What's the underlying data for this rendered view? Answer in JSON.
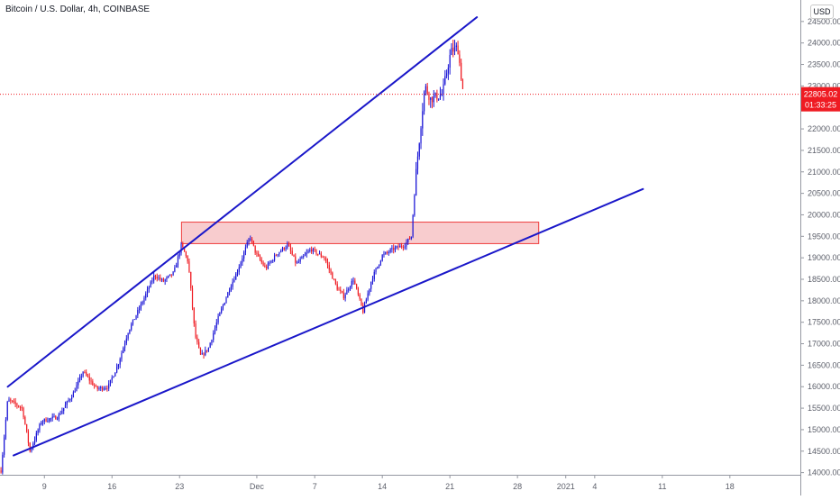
{
  "title": "Bitcoin / U.S. Dollar, 4h, COINBASE",
  "currency_label": "USD",
  "last_price_label": "22805.02",
  "countdown_label": "01:33:25",
  "colors": {
    "trendline": "#1a17c9",
    "up_candle": "#1b16d6",
    "down_candle": "#ef1b22",
    "zone_fill": "#f7c3c6",
    "zone_border": "#ee3b3b",
    "price_label_bg": "#ef1b22",
    "axis_text": "#5d606b",
    "axis_line": "#9598a1"
  },
  "chart_data": {
    "type": "candlestick",
    "title": "Bitcoin / U.S. Dollar, 4h, COINBASE",
    "ylim": [
      13950,
      25000
    ],
    "y_ticks": [
      14000,
      14500,
      15000,
      15500,
      16000,
      16500,
      17000,
      17500,
      18000,
      18500,
      19000,
      19500,
      20000,
      20500,
      21000,
      21500,
      22000,
      22500,
      23000,
      23500,
      24000,
      24500
    ],
    "y_tick_labels": [
      "14000.00",
      "14500.00",
      "15000.00",
      "15500.00",
      "16000.00",
      "16500.00",
      "17000.00",
      "17500.00",
      "18000.00",
      "18500.00",
      "19000.00",
      "19500.00",
      "20000.00",
      "20500.00",
      "21000.00",
      "21500.00",
      "22000.00",
      "22500.00",
      "23000.00",
      "23500.00",
      "24000.00",
      "24500.00"
    ],
    "x_ticks": [
      {
        "label": "9",
        "day": 0
      },
      {
        "label": "16",
        "day": 7
      },
      {
        "label": "23",
        "day": 14
      },
      {
        "label": "Dec",
        "day": 22
      },
      {
        "label": "7",
        "day": 28
      },
      {
        "label": "14",
        "day": 35
      },
      {
        "label": "21",
        "day": 42
      },
      {
        "label": "28",
        "day": 49
      },
      {
        "label": "2021",
        "day": 54
      },
      {
        "label": "4",
        "day": 57
      },
      {
        "label": "11",
        "day": 64
      },
      {
        "label": "18",
        "day": 71
      }
    ],
    "x_day_range": [
      -4.6,
      78.3
    ],
    "price_anchors": [
      [
        -4.5,
        14050
      ],
      [
        -3.8,
        15700
      ],
      [
        -2.3,
        15500
      ],
      [
        -1.5,
        14500
      ],
      [
        -0.3,
        15200
      ],
      [
        1.4,
        15300
      ],
      [
        3.0,
        15850
      ],
      [
        4.0,
        16350
      ],
      [
        5.4,
        15950
      ],
      [
        6.6,
        16000
      ],
      [
        7.6,
        16500
      ],
      [
        8.7,
        17300
      ],
      [
        10.0,
        17900
      ],
      [
        11.4,
        18600
      ],
      [
        12.3,
        18450
      ],
      [
        13.4,
        18650
      ],
      [
        14.2,
        19300
      ],
      [
        14.9,
        18900
      ],
      [
        15.6,
        17200
      ],
      [
        16.2,
        16700
      ],
      [
        17.0,
        16900
      ],
      [
        18.0,
        17600
      ],
      [
        19.2,
        18300
      ],
      [
        20.0,
        18700
      ],
      [
        21.3,
        19500
      ],
      [
        21.9,
        19100
      ],
      [
        22.9,
        18750
      ],
      [
        24.1,
        19100
      ],
      [
        25.2,
        19300
      ],
      [
        26.1,
        18850
      ],
      [
        27.6,
        19200
      ],
      [
        29.0,
        19000
      ],
      [
        30.3,
        18300
      ],
      [
        31.0,
        18100
      ],
      [
        32.0,
        18500
      ],
      [
        33.0,
        17750
      ],
      [
        33.9,
        18500
      ],
      [
        35.0,
        19050
      ],
      [
        36.1,
        19200
      ],
      [
        37.3,
        19300
      ],
      [
        38.0,
        19500
      ],
      [
        38.5,
        21000
      ],
      [
        39.4,
        23000
      ],
      [
        40.0,
        22700
      ],
      [
        41.2,
        22800
      ],
      [
        42.1,
        23800
      ],
      [
        42.8,
        23900
      ],
      [
        43.4,
        22800
      ]
    ],
    "channel_upper": {
      "from": [
        -3.8,
        16000
      ],
      "to": [
        44.8,
        24600
      ]
    },
    "channel_lower": {
      "from": [
        -3.2,
        14400
      ],
      "to": [
        62.0,
        20600
      ]
    },
    "resistance_zone": {
      "from_day": 14.2,
      "to_day": 51.2,
      "low": 19330,
      "high": 19830
    },
    "last_price": 22805.02,
    "countdown": "01:33:25"
  }
}
